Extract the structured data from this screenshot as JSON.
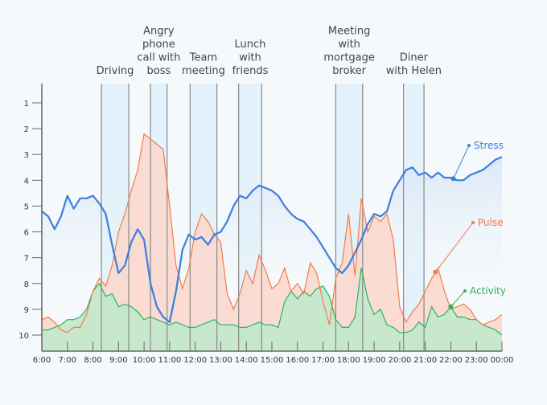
{
  "chart_data": {
    "type": "area",
    "title": "",
    "xlabel": "",
    "ylabel": "",
    "x_range_hours": [
      6,
      24
    ],
    "ylim": [
      10.4,
      0.5
    ],
    "y_ticks": [
      1,
      2,
      3,
      4,
      5,
      6,
      7,
      8,
      9,
      10
    ],
    "x_tick_labels": [
      "6:00",
      "7:00",
      "8:00",
      "9:00",
      "10:00",
      "11:00",
      "12:00",
      "13:00",
      "14:00",
      "15:00",
      "16:00",
      "17:00",
      "18:00",
      "19:00",
      "20:00",
      "21:00",
      "22:00",
      "23:00",
      "00:00"
    ],
    "events": [
      {
        "label_lines": [
          "Driving"
        ],
        "start": 8.33,
        "end": 9.4
      },
      {
        "label_lines": [
          "Angry",
          "phone",
          "call with",
          "boss"
        ],
        "start": 10.25,
        "end": 10.9
      },
      {
        "label_lines": [
          "Team",
          "meeting"
        ],
        "start": 11.8,
        "end": 12.85
      },
      {
        "label_lines": [
          "Lunch",
          "with",
          "friends"
        ],
        "start": 13.7,
        "end": 14.6
      },
      {
        "label_lines": [
          "Meeting",
          "with",
          "mortgage",
          "broker"
        ],
        "start": 17.5,
        "end": 18.55
      },
      {
        "label_lines": [
          "Diner",
          "with Helen"
        ],
        "start": 20.15,
        "end": 20.95
      }
    ],
    "series": [
      {
        "name": "Stress",
        "color": "#3b7fdc",
        "x": [
          6.0,
          6.25,
          6.5,
          6.75,
          7.0,
          7.25,
          7.5,
          7.75,
          8.0,
          8.25,
          8.5,
          8.75,
          9.0,
          9.25,
          9.5,
          9.75,
          10.0,
          10.25,
          10.5,
          10.75,
          11.0,
          11.25,
          11.5,
          11.75,
          12.0,
          12.25,
          12.5,
          12.75,
          13.0,
          13.25,
          13.5,
          13.75,
          14.0,
          14.25,
          14.5,
          14.75,
          15.0,
          15.25,
          15.5,
          15.75,
          16.0,
          16.25,
          16.5,
          16.75,
          17.0,
          17.25,
          17.5,
          17.75,
          18.0,
          18.25,
          18.5,
          18.75,
          19.0,
          19.25,
          19.5,
          19.75,
          20.0,
          20.25,
          20.5,
          20.75,
          21.0,
          21.25,
          21.5,
          21.75,
          22.0,
          22.25,
          22.5,
          22.75,
          23.0,
          23.25,
          23.5,
          23.75,
          24.0
        ],
        "values": [
          5.2,
          5.4,
          5.9,
          5.4,
          4.6,
          5.1,
          4.7,
          4.7,
          4.6,
          4.9,
          5.3,
          6.5,
          7.6,
          7.3,
          6.4,
          5.9,
          6.3,
          8.0,
          8.9,
          9.3,
          9.5,
          8.3,
          6.7,
          6.1,
          6.3,
          6.2,
          6.5,
          6.1,
          6.0,
          5.6,
          5.0,
          4.6,
          4.7,
          4.4,
          4.2,
          4.3,
          4.4,
          4.6,
          5.0,
          5.3,
          5.5,
          5.6,
          5.9,
          6.2,
          6.6,
          7.0,
          7.4,
          7.6,
          7.3,
          6.8,
          6.3,
          5.7,
          5.3,
          5.4,
          5.2,
          4.4,
          4.0,
          3.6,
          3.5,
          3.8,
          3.7,
          3.9,
          3.7,
          3.9,
          3.9,
          4.0,
          4.0,
          3.8,
          3.7,
          3.6,
          3.4,
          3.2,
          3.1
        ]
      },
      {
        "name": "Pulse",
        "color": "#f07c4a",
        "x": [
          6.0,
          6.25,
          6.5,
          6.75,
          7.0,
          7.25,
          7.5,
          7.75,
          8.0,
          8.25,
          8.5,
          8.75,
          9.0,
          9.25,
          9.5,
          9.75,
          10.0,
          10.25,
          10.5,
          10.75,
          11.0,
          11.25,
          11.5,
          11.75,
          12.0,
          12.25,
          12.5,
          12.75,
          13.0,
          13.25,
          13.5,
          13.75,
          14.0,
          14.25,
          14.5,
          14.75,
          15.0,
          15.25,
          15.5,
          15.75,
          16.0,
          16.25,
          16.5,
          16.75,
          17.0,
          17.25,
          17.5,
          17.75,
          18.0,
          18.25,
          18.5,
          18.75,
          19.0,
          19.25,
          19.5,
          19.75,
          20.0,
          20.25,
          20.5,
          20.75,
          21.0,
          21.25,
          21.5,
          21.75,
          22.0,
          22.25,
          22.5,
          22.75,
          23.0,
          23.25,
          23.5,
          23.75,
          24.0
        ],
        "values": [
          9.4,
          9.3,
          9.5,
          9.8,
          9.9,
          9.7,
          9.7,
          9.2,
          8.3,
          7.8,
          8.1,
          7.3,
          6.0,
          5.3,
          4.4,
          3.6,
          2.2,
          2.4,
          2.6,
          2.8,
          5.0,
          7.3,
          8.2,
          7.4,
          6.0,
          5.3,
          5.6,
          6.1,
          6.4,
          8.4,
          9.0,
          8.4,
          7.5,
          8.0,
          6.9,
          7.5,
          8.2,
          8.0,
          7.4,
          8.3,
          8.0,
          8.4,
          7.2,
          7.6,
          8.7,
          9.6,
          7.8,
          7.2,
          5.3,
          7.7,
          4.7,
          6.0,
          5.4,
          5.6,
          5.3,
          6.3,
          8.9,
          9.5,
          9.1,
          8.8,
          8.3,
          7.8,
          7.4,
          8.3,
          9.0,
          8.9,
          8.8,
          9.0,
          9.4,
          9.6,
          9.5,
          9.4,
          9.2
        ]
      },
      {
        "name": "Activity",
        "color": "#2cb35a",
        "x": [
          6.0,
          6.25,
          6.5,
          6.75,
          7.0,
          7.25,
          7.5,
          7.75,
          8.0,
          8.25,
          8.5,
          8.75,
          9.0,
          9.25,
          9.5,
          9.75,
          10.0,
          10.25,
          10.5,
          10.75,
          11.0,
          11.25,
          11.5,
          11.75,
          12.0,
          12.25,
          12.5,
          12.75,
          13.0,
          13.25,
          13.5,
          13.75,
          14.0,
          14.25,
          14.5,
          14.75,
          15.0,
          15.25,
          15.5,
          15.75,
          16.0,
          16.25,
          16.5,
          16.75,
          17.0,
          17.25,
          17.5,
          17.75,
          18.0,
          18.25,
          18.5,
          18.75,
          19.0,
          19.25,
          19.5,
          19.75,
          20.0,
          20.25,
          20.5,
          20.75,
          21.0,
          21.25,
          21.5,
          21.75,
          22.0,
          22.25,
          22.5,
          22.75,
          23.0,
          23.25,
          23.5,
          23.75,
          24.0
        ],
        "values": [
          9.8,
          9.8,
          9.7,
          9.6,
          9.4,
          9.4,
          9.3,
          9.0,
          8.3,
          8.0,
          8.5,
          8.4,
          8.9,
          8.8,
          8.9,
          9.1,
          9.4,
          9.3,
          9.4,
          9.5,
          9.6,
          9.5,
          9.6,
          9.7,
          9.7,
          9.6,
          9.5,
          9.4,
          9.6,
          9.6,
          9.6,
          9.7,
          9.7,
          9.6,
          9.5,
          9.6,
          9.6,
          9.7,
          8.7,
          8.3,
          8.6,
          8.3,
          8.5,
          8.2,
          8.1,
          8.5,
          9.4,
          9.7,
          9.7,
          9.3,
          7.4,
          8.6,
          9.2,
          9.0,
          9.6,
          9.7,
          9.9,
          9.9,
          9.8,
          9.5,
          9.7,
          8.9,
          9.3,
          9.2,
          8.9,
          9.3,
          9.3,
          9.4,
          9.4,
          9.6,
          9.7,
          9.8,
          10.0
        ]
      }
    ],
    "legend_annotations": [
      {
        "series": "Stress",
        "label": "Stress",
        "at": 22.1
      },
      {
        "series": "Pulse",
        "label": "Pulse",
        "at": 21.4
      },
      {
        "series": "Activity",
        "label": "Activity",
        "at": 22.0
      }
    ]
  }
}
